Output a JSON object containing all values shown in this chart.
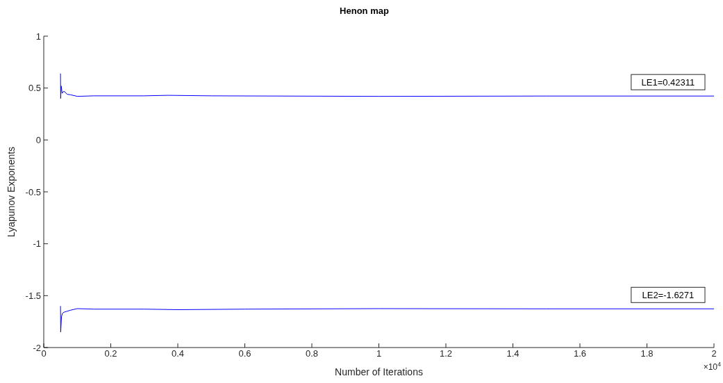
{
  "chart_data": {
    "type": "line",
    "title": "Henon map",
    "xlabel": "Number of Iterations",
    "ylabel": "Lyapunov Exponents",
    "annotations": [
      "LE1=0.42311",
      "LE2=-1.6271",
      "×10$^{4}$"
    ],
    "series": [
      {
        "color": "#0000ff",
        "x": [
          0.05,
          0.0505,
          0.052,
          0.055,
          0.06,
          0.07,
          0.08,
          0.1,
          0.15,
          0.3,
          0.37,
          0.5,
          1,
          1.5,
          2
        ],
        "values": [
          0.64,
          0.4,
          0.52,
          0.45,
          0.47,
          0.44,
          0.435,
          0.42,
          0.425,
          0.425,
          0.43,
          0.425,
          0.42,
          0.423,
          0.423
        ]
      },
      {
        "color": "#0000ff",
        "x": [
          0.05,
          0.0505,
          0.053,
          0.056,
          0.06,
          0.07,
          0.08,
          0.1,
          0.15,
          0.3,
          0.4,
          0.6,
          1,
          1.5,
          2
        ],
        "values": [
          -1.6,
          -1.85,
          -1.7,
          -1.67,
          -1.66,
          -1.65,
          -1.64,
          -1.625,
          -1.63,
          -1.63,
          -1.635,
          -1.63,
          -1.625,
          -1.627,
          -1.627
        ]
      }
    ],
    "xlim": [
      0,
      2
    ],
    "xticks": [
      0,
      0.2,
      0.4,
      0.6,
      0.8,
      1,
      1.2,
      1.4,
      1.6,
      1.8,
      2
    ],
    "ylim": [
      -2,
      1
    ],
    "yticks": [
      -2,
      -1.5,
      -1,
      -0.5,
      0,
      0.5,
      1
    ],
    "grid": false,
    "marker": "none",
    "line_style": "solid"
  }
}
